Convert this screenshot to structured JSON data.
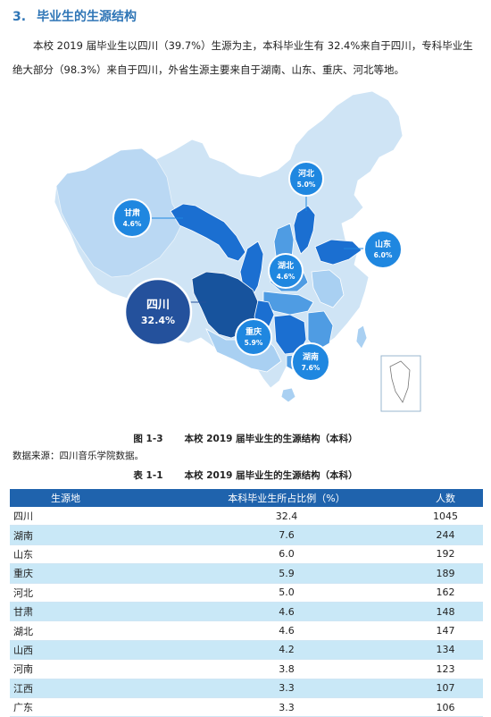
{
  "section": {
    "number": "3.",
    "title": "毕业生的生源结构"
  },
  "intro_paragraph": "本校 2019 届毕业生以四川（39.7%）生源为主，本科毕业生有 32.4%来自于四川，专科毕业生绝大部分（98.3%）来自于四川，外省生源主要来自于湖南、山东、重庆、河北等地。",
  "map": {
    "colors": {
      "base": "#cfe4f5",
      "light": "#a9d0f2",
      "medium": "#4f9ce3",
      "strong": "#1b6fd1",
      "darkest": "#17539d",
      "bubble": "#1f87e0",
      "bubble_big": "#24519c"
    },
    "bubbles": [
      {
        "name": "河北",
        "value": "5.0%"
      },
      {
        "name": "甘肃",
        "value": "4.6%"
      },
      {
        "name": "山东",
        "value": "6.0%"
      },
      {
        "name": "湖北",
        "value": "4.6%"
      },
      {
        "name": "四川",
        "value": "32.4%"
      },
      {
        "name": "重庆",
        "value": "5.9%"
      },
      {
        "name": "湖南",
        "value": "7.6%"
      }
    ]
  },
  "figure_caption": {
    "number": "图 1-3",
    "text": "本校 2019 届毕业生的生源结构（本科）"
  },
  "data_source": "数据来源：四川音乐学院数据。",
  "table_caption": {
    "number": "表 1-1",
    "text": "本校 2019 届毕业生的生源结构（本科）"
  },
  "table": {
    "headers": [
      "生源地",
      "本科毕业生所占比例（%）",
      "人数"
    ],
    "rows": [
      [
        "四川",
        "32.4",
        "1045"
      ],
      [
        "湖南",
        "7.6",
        "244"
      ],
      [
        "山东",
        "6.0",
        "192"
      ],
      [
        "重庆",
        "5.9",
        "189"
      ],
      [
        "河北",
        "5.0",
        "162"
      ],
      [
        "甘肃",
        "4.6",
        "148"
      ],
      [
        "湖北",
        "4.6",
        "147"
      ],
      [
        "山西",
        "4.2",
        "134"
      ],
      [
        "河南",
        "3.8",
        "123"
      ],
      [
        "江西",
        "3.3",
        "107"
      ],
      [
        "广东",
        "3.3",
        "106"
      ]
    ]
  }
}
